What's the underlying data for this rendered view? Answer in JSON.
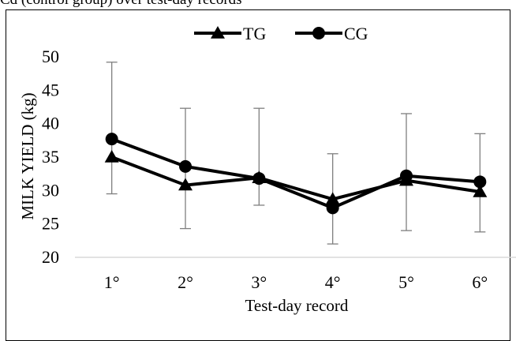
{
  "figure": {
    "caption_fragment": "Cd (control group) over test-day records"
  },
  "chart_data": {
    "type": "line",
    "title": "",
    "xlabel": "Test-day record",
    "ylabel": "MILK YIELD (kg)",
    "categories": [
      "1°",
      "2°",
      "3°",
      "4°",
      "5°",
      "6°"
    ],
    "yticks": [
      "20",
      "25",
      "30",
      "35",
      "40",
      "45",
      "50"
    ],
    "ylim": [
      20,
      50
    ],
    "grid": false,
    "legend_position": "top-center",
    "series": [
      {
        "name": "TG",
        "marker": "triangle",
        "color": "#000000",
        "values": [
          35.0,
          30.8,
          31.9,
          28.7,
          31.5,
          29.8
        ]
      },
      {
        "name": "CG",
        "marker": "circle",
        "color": "#000000",
        "values": [
          37.7,
          33.6,
          31.8,
          27.4,
          32.2,
          31.3
        ]
      }
    ],
    "error_bars": [
      {
        "low": 29.5,
        "high": 49.2
      },
      {
        "low": 24.3,
        "high": 42.3
      },
      {
        "low": 27.8,
        "high": 42.3
      },
      {
        "low": 22.0,
        "high": 35.5
      },
      {
        "low": 24.0,
        "high": 41.5
      },
      {
        "low": 23.8,
        "high": 38.5
      }
    ]
  }
}
